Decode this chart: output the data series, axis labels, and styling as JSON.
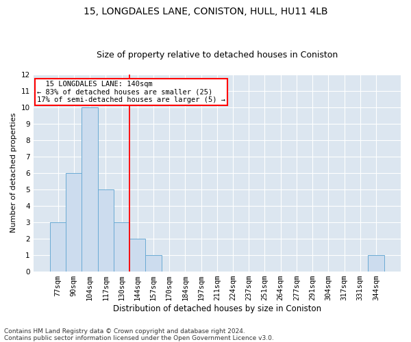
{
  "title1": "15, LONGDALES LANE, CONISTON, HULL, HU11 4LB",
  "title2": "Size of property relative to detached houses in Coniston",
  "xlabel": "Distribution of detached houses by size in Coniston",
  "ylabel": "Number of detached properties",
  "categories": [
    "77sqm",
    "90sqm",
    "104sqm",
    "117sqm",
    "130sqm",
    "144sqm",
    "157sqm",
    "170sqm",
    "184sqm",
    "197sqm",
    "211sqm",
    "224sqm",
    "237sqm",
    "251sqm",
    "264sqm",
    "277sqm",
    "291sqm",
    "304sqm",
    "317sqm",
    "331sqm",
    "344sqm"
  ],
  "values": [
    3,
    6,
    10,
    5,
    3,
    2,
    1,
    0,
    0,
    0,
    0,
    0,
    0,
    0,
    0,
    0,
    0,
    0,
    0,
    0,
    1
  ],
  "bar_color": "#ccdcee",
  "bar_edge_color": "#6aaad4",
  "background_color": "#dce6f0",
  "ylim_max": 12,
  "red_line_x": 4.5,
  "annotation_line1": "  15 LONGDALES LANE: 140sqm  ",
  "annotation_line2": "← 83% of detached houses are smaller (25)",
  "annotation_line3": "17% of semi-detached houses are larger (5) →",
  "footnote1": "Contains HM Land Registry data © Crown copyright and database right 2024.",
  "footnote2": "Contains public sector information licensed under the Open Government Licence v3.0.",
  "grid_color": "#ffffff",
  "title1_fontsize": 10,
  "title2_fontsize": 9,
  "xlabel_fontsize": 8.5,
  "ylabel_fontsize": 8,
  "tick_fontsize": 7.5,
  "annot_fontsize": 7.5,
  "footnote_fontsize": 6.5
}
